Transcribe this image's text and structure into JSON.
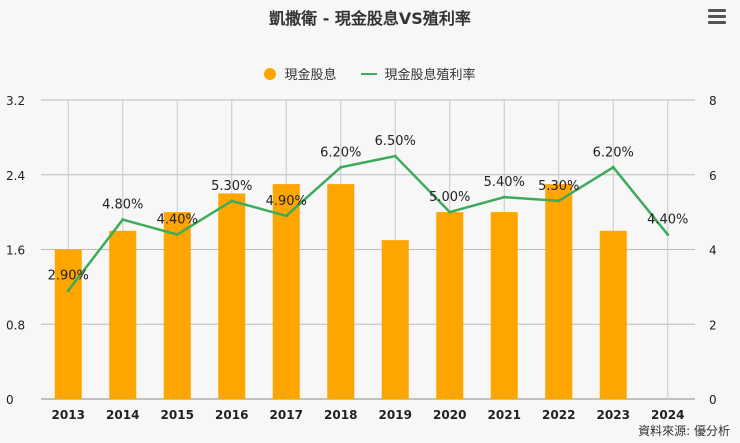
{
  "title": "凱撒衛 - 現金股息VS殖利率",
  "menu_icon": "hamburger-menu-icon",
  "source": "資料來源: 優分析",
  "chart_data": {
    "type": "bar+line",
    "title": "凱撒衛 - 現金股息VS殖利率",
    "categories": [
      "2013",
      "2014",
      "2015",
      "2016",
      "2017",
      "2018",
      "2019",
      "2020",
      "2021",
      "2022",
      "2023",
      "2024"
    ],
    "series": [
      {
        "name": "現金股息",
        "type": "bar",
        "axis": "left",
        "color": "#FFA500",
        "values": [
          1.6,
          1.8,
          2.0,
          2.2,
          2.3,
          2.3,
          1.7,
          2.0,
          2.0,
          2.3,
          1.8,
          null
        ]
      },
      {
        "name": "現金股息殖利率",
        "type": "line",
        "axis": "right",
        "color": "#3cab5a",
        "values": [
          2.9,
          4.8,
          4.4,
          5.3,
          4.9,
          6.2,
          6.5,
          5.0,
          5.4,
          5.3,
          6.2,
          4.4
        ],
        "labels": [
          "2.90%",
          "4.80%",
          "4.40%",
          "5.30%",
          "4.90%",
          "6.20%",
          "6.50%",
          "5.00%",
          "5.40%",
          "5.30%",
          "6.20%",
          "4.40%"
        ]
      }
    ],
    "y_left": {
      "range": [
        0,
        3.2
      ],
      "ticks": [
        "0",
        "0.8",
        "1.6",
        "2.4",
        "3.2"
      ]
    },
    "y_right": {
      "range": [
        0,
        8
      ],
      "ticks": [
        "0",
        "2",
        "4",
        "6",
        "8"
      ]
    },
    "grid": true,
    "legend": "top-center"
  }
}
